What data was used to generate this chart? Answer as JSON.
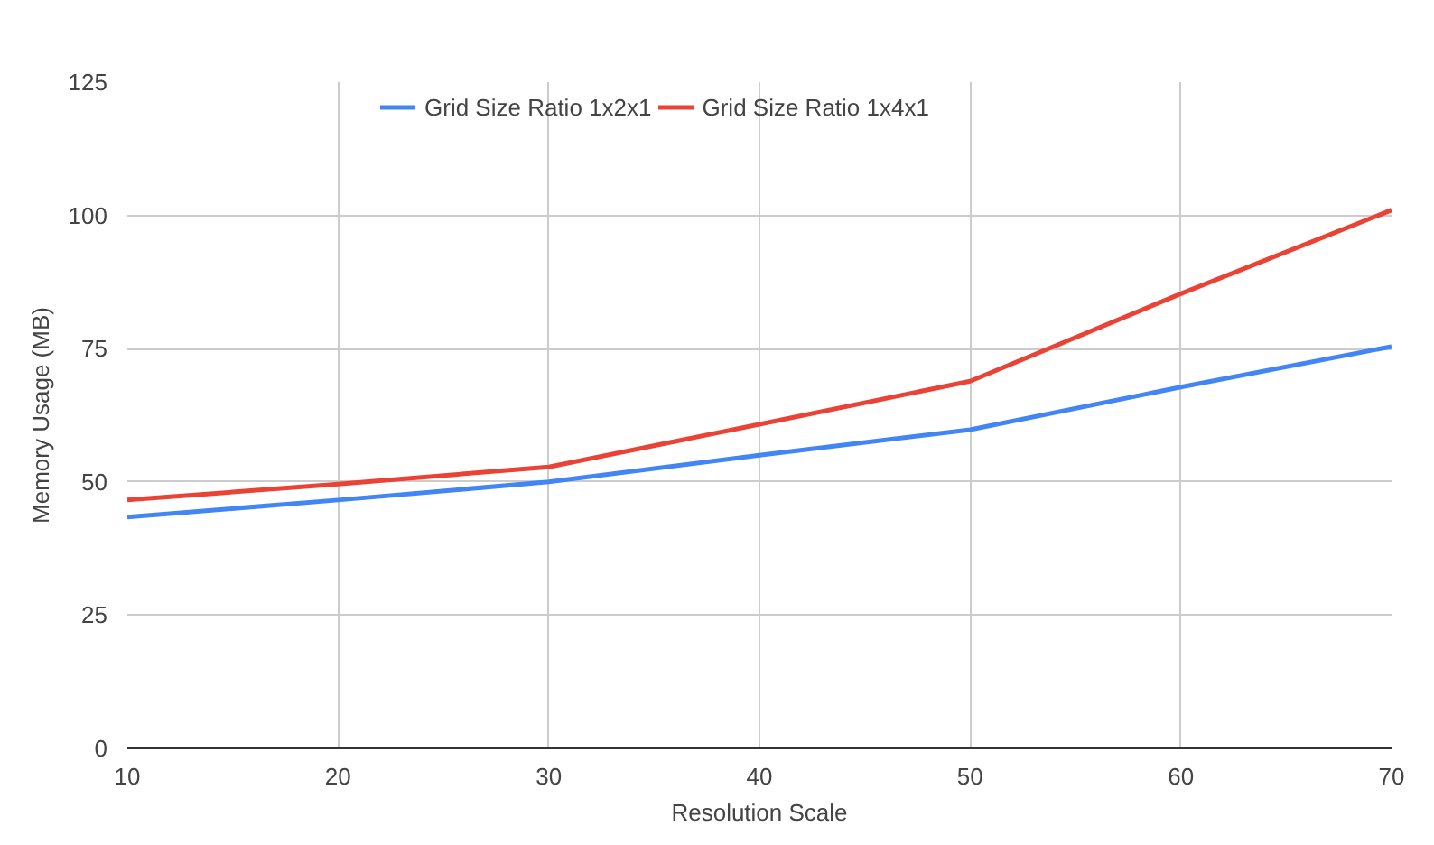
{
  "chart_data": {
    "type": "line",
    "xlabel": "Resolution Scale",
    "ylabel": "Memory Usage (MB)",
    "x": [
      10,
      20,
      30,
      40,
      50,
      60,
      70
    ],
    "series": [
      {
        "name": "Grid Size Ratio 1x2x1",
        "color": "#4285f4",
        "values": [
          43.4,
          46.6,
          50,
          55,
          59.8,
          67.8,
          75.4
        ]
      },
      {
        "name": "Grid Size Ratio 1x4x1",
        "color": "#ea4335",
        "values": [
          46.6,
          49.6,
          52.8,
          60.8,
          68.9,
          85.3,
          101
        ]
      }
    ],
    "xlim": [
      10,
      70
    ],
    "xticks": [
      10,
      20,
      30,
      40,
      50,
      60,
      70
    ],
    "ylim": [
      0,
      125
    ],
    "yticks": [
      0,
      25,
      50,
      75,
      100,
      125
    ],
    "grid": true,
    "legend": "top",
    "marker": "none",
    "line_style": "solid"
  }
}
